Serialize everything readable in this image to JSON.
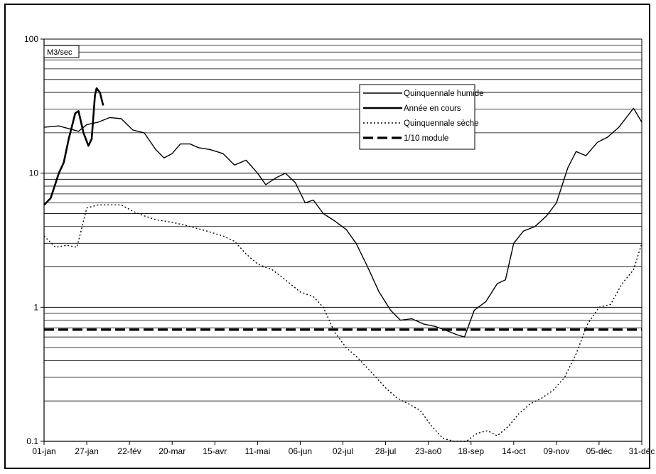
{
  "chart_data": {
    "type": "line",
    "y_scale": "log",
    "ylim": [
      0.1,
      100
    ],
    "y_ticks": [
      {
        "value": 0.1,
        "label": "0.1"
      },
      {
        "value": 1,
        "label": "1"
      },
      {
        "value": 10,
        "label": "10"
      },
      {
        "value": 100,
        "label": "100"
      }
    ],
    "x_range": [
      "2005-01-01",
      "2005-12-31"
    ],
    "x_ticks": [
      {
        "date": "2005-01-01",
        "label": "01-jan"
      },
      {
        "date": "2005-01-27",
        "label": "27-jan"
      },
      {
        "date": "2005-02-22",
        "label": "22-fév"
      },
      {
        "date": "2005-03-20",
        "label": "20-mar"
      },
      {
        "date": "2005-04-15",
        "label": "15-avr"
      },
      {
        "date": "2005-05-11",
        "label": "11-mai"
      },
      {
        "date": "2005-06-06",
        "label": "06-jun"
      },
      {
        "date": "2005-07-02",
        "label": "02-jul"
      },
      {
        "date": "2005-07-28",
        "label": "28-jul"
      },
      {
        "date": "2005-08-23",
        "label": "23-ao0"
      },
      {
        "date": "2005-09-18",
        "label": "18-sep"
      },
      {
        "date": "2005-10-14",
        "label": "14-oct"
      },
      {
        "date": "2005-11-09",
        "label": "09-nov"
      },
      {
        "date": "2005-12-05",
        "label": "05-déc"
      },
      {
        "date": "2005-12-31",
        "label": "31-déc"
      }
    ],
    "unit_label": "M3/sec",
    "grid": "horizontal log minor lines",
    "legend_position": "top-right",
    "series": [
      {
        "name": "Quinquennale humide",
        "style": "solid-thin",
        "color": "#000000",
        "points": [
          [
            "2005-01-01",
            22
          ],
          [
            "2005-01-10",
            22.5
          ],
          [
            "2005-01-22",
            20.5
          ],
          [
            "2005-01-27",
            23
          ],
          [
            "2005-02-03",
            24
          ],
          [
            "2005-02-10",
            26
          ],
          [
            "2005-02-17",
            25.5
          ],
          [
            "2005-02-24",
            21
          ],
          [
            "2005-03-03",
            20
          ],
          [
            "2005-03-10",
            15
          ],
          [
            "2005-03-15",
            13
          ],
          [
            "2005-03-20",
            14
          ],
          [
            "2005-03-25",
            16.5
          ],
          [
            "2005-03-31",
            16.5
          ],
          [
            "2005-04-05",
            15.5
          ],
          [
            "2005-04-12",
            15
          ],
          [
            "2005-04-20",
            14
          ],
          [
            "2005-04-27",
            11.5
          ],
          [
            "2005-05-04",
            12.5
          ],
          [
            "2005-05-11",
            10
          ],
          [
            "2005-05-16",
            8.2
          ],
          [
            "2005-05-22",
            9.2
          ],
          [
            "2005-05-28",
            10
          ],
          [
            "2005-06-03",
            8.5
          ],
          [
            "2005-06-09",
            6
          ],
          [
            "2005-06-14",
            6.3
          ],
          [
            "2005-06-20",
            5
          ],
          [
            "2005-06-27",
            4.4
          ],
          [
            "2005-07-04",
            3.8
          ],
          [
            "2005-07-10",
            3
          ],
          [
            "2005-07-17",
            2
          ],
          [
            "2005-07-24",
            1.3
          ],
          [
            "2005-07-31",
            0.95
          ],
          [
            "2005-08-06",
            0.8
          ],
          [
            "2005-08-13",
            0.82
          ],
          [
            "2005-08-20",
            0.75
          ],
          [
            "2005-08-27",
            0.72
          ],
          [
            "2005-09-03",
            0.67
          ],
          [
            "2005-09-10",
            0.62
          ],
          [
            "2005-09-14",
            0.6
          ],
          [
            "2005-09-20",
            0.95
          ],
          [
            "2005-09-27",
            1.1
          ],
          [
            "2005-10-04",
            1.5
          ],
          [
            "2005-10-09",
            1.6
          ],
          [
            "2005-10-14",
            3
          ],
          [
            "2005-10-20",
            3.7
          ],
          [
            "2005-10-27",
            4
          ],
          [
            "2005-11-03",
            4.8
          ],
          [
            "2005-11-09",
            6
          ],
          [
            "2005-11-16",
            11
          ],
          [
            "2005-11-21",
            14.5
          ],
          [
            "2005-11-27",
            13.5
          ],
          [
            "2005-12-04",
            17
          ],
          [
            "2005-12-10",
            18.5
          ],
          [
            "2005-12-17",
            22
          ],
          [
            "2005-12-26",
            30.5
          ],
          [
            "2005-12-31",
            24
          ]
        ]
      },
      {
        "name": "Année en cours",
        "style": "solid-thick",
        "color": "#000000",
        "points": [
          [
            "2005-01-01",
            5.8
          ],
          [
            "2005-01-05",
            6.5
          ],
          [
            "2005-01-10",
            10
          ],
          [
            "2005-01-13",
            12
          ],
          [
            "2005-01-16",
            18
          ],
          [
            "2005-01-20",
            28
          ],
          [
            "2005-01-22",
            29
          ],
          [
            "2005-01-25",
            20
          ],
          [
            "2005-01-28",
            16
          ],
          [
            "2005-01-30",
            18
          ],
          [
            "2005-02-01",
            38
          ],
          [
            "2005-02-02",
            43
          ],
          [
            "2005-02-04",
            40
          ],
          [
            "2005-02-06",
            32
          ]
        ]
      },
      {
        "name": "Quinquennale sèche",
        "style": "dotted",
        "color": "#000000",
        "points": [
          [
            "2005-01-01",
            3.4
          ],
          [
            "2005-01-08",
            2.8
          ],
          [
            "2005-01-15",
            2.9
          ],
          [
            "2005-01-21",
            2.8
          ],
          [
            "2005-01-27",
            5.5
          ],
          [
            "2005-02-03",
            5.8
          ],
          [
            "2005-02-10",
            5.8
          ],
          [
            "2005-02-17",
            5.8
          ],
          [
            "2005-02-24",
            5.2
          ],
          [
            "2005-03-03",
            4.8
          ],
          [
            "2005-03-10",
            4.5
          ],
          [
            "2005-03-20",
            4.3
          ],
          [
            "2005-03-31",
            4
          ],
          [
            "2005-04-10",
            3.7
          ],
          [
            "2005-04-20",
            3.4
          ],
          [
            "2005-04-27",
            3.1
          ],
          [
            "2005-05-04",
            2.5
          ],
          [
            "2005-05-11",
            2.1
          ],
          [
            "2005-05-20",
            1.9
          ],
          [
            "2005-05-28",
            1.6
          ],
          [
            "2005-06-06",
            1.3
          ],
          [
            "2005-06-14",
            1.2
          ],
          [
            "2005-06-20",
            1
          ],
          [
            "2005-06-27",
            0.65
          ],
          [
            "2005-07-04",
            0.5
          ],
          [
            "2005-07-11",
            0.42
          ],
          [
            "2005-07-20",
            0.32
          ],
          [
            "2005-07-28",
            0.25
          ],
          [
            "2005-08-04",
            0.21
          ],
          [
            "2005-08-11",
            0.19
          ],
          [
            "2005-08-18",
            0.17
          ],
          [
            "2005-08-25",
            0.13
          ],
          [
            "2005-09-01",
            0.105
          ],
          [
            "2005-09-08",
            0.1
          ],
          [
            "2005-09-15",
            0.1
          ],
          [
            "2005-09-22",
            0.115
          ],
          [
            "2005-09-28",
            0.12
          ],
          [
            "2005-10-04",
            0.11
          ],
          [
            "2005-10-11",
            0.13
          ],
          [
            "2005-10-17",
            0.16
          ],
          [
            "2005-10-24",
            0.19
          ],
          [
            "2005-10-31",
            0.21
          ],
          [
            "2005-11-07",
            0.24
          ],
          [
            "2005-11-14",
            0.3
          ],
          [
            "2005-11-21",
            0.45
          ],
          [
            "2005-11-28",
            0.75
          ],
          [
            "2005-12-05",
            1
          ],
          [
            "2005-12-12",
            1.05
          ],
          [
            "2005-12-19",
            1.5
          ],
          [
            "2005-12-26",
            1.9
          ],
          [
            "2005-12-31",
            3
          ]
        ]
      },
      {
        "name": "1/10 module",
        "style": "dashed-thick",
        "color": "#000000",
        "points": [
          [
            "2005-01-01",
            0.68
          ],
          [
            "2005-12-31",
            0.68
          ]
        ]
      }
    ]
  }
}
